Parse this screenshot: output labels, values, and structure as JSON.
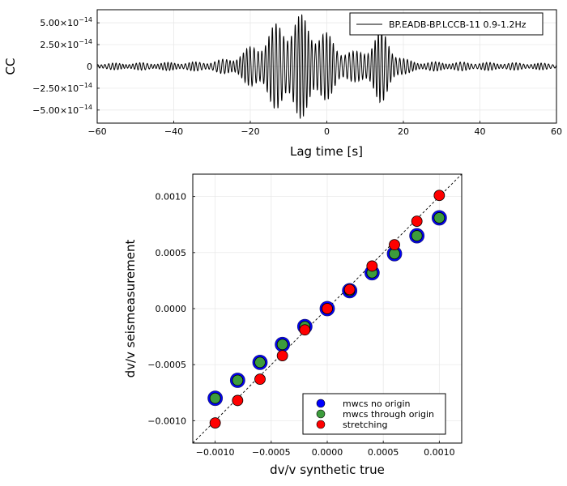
{
  "chart_data": [
    {
      "type": "line",
      "title": "",
      "xlabel": "Lag time [s]",
      "ylabel": "CC",
      "xlim": [
        -60,
        60
      ],
      "ylim": [
        -6.5e-14,
        6.5e-14
      ],
      "xticks": [
        -60,
        -40,
        -20,
        0,
        20,
        40,
        60
      ],
      "xtick_labels": [
        "−60",
        "−40",
        "−20",
        "0",
        "20",
        "40",
        "60"
      ],
      "yticks": [
        5e-14,
        2.5e-14,
        0,
        -2.5e-14,
        -5e-14
      ],
      "ytick_labels": [
        {
          "mant": "5.00×10",
          "exp": "−14"
        },
        {
          "mant": "2.50×10",
          "exp": "−14"
        },
        {
          "mant": "0",
          "exp": ""
        },
        {
          "mant": "−2.50×10",
          "exp": "−14"
        },
        {
          "mant": "−5.00×10",
          "exp": "−14"
        }
      ],
      "grid": true,
      "legend": "top-right",
      "series": [
        {
          "name": "BP.EADB-BP.LCCB-11 0.9-1.2Hz",
          "color": "#000000",
          "envelope": [
            {
              "center": -8,
              "width": 8,
              "amp": 5.5e-14
            },
            {
              "center": 14,
              "width": 3,
              "amp": 3.5e-14
            },
            {
              "center": 0,
              "width": 60,
              "amp": 6e-15
            }
          ]
        }
      ]
    },
    {
      "type": "scatter",
      "title": "",
      "xlabel": "dv/v synthetic true",
      "ylabel": "dv/v seismeasurement",
      "xlim": [
        -0.0012,
        0.0012
      ],
      "ylim": [
        -0.0012,
        0.0012
      ],
      "xticks": [
        -0.001,
        -0.0005,
        0,
        0.0005,
        0.001
      ],
      "xtick_labels": [
        "−0.0010",
        "−0.0005",
        "0.0000",
        "0.0005",
        "0.0010"
      ],
      "yticks": [
        0.001,
        0.0005,
        0,
        -0.0005,
        -0.001
      ],
      "ytick_labels": [
        "0.0010",
        "0.0005",
        "0.0000",
        "−0.0005",
        "−0.0010"
      ],
      "grid": true,
      "legend": "bottom-right",
      "reference_line": {
        "style": "dashed",
        "from": [
          -0.0012,
          -0.0012
        ],
        "to": [
          0.0012,
          0.0012
        ]
      },
      "x": [
        -0.001,
        -0.0008,
        -0.0006,
        -0.0004,
        -0.0002,
        0,
        0.0002,
        0.0004,
        0.0006,
        0.0008,
        0.001
      ],
      "series": [
        {
          "name": "mwcs no origin",
          "color": "#0000ff",
          "y": [
            -0.0008,
            -0.00064,
            -0.00048,
            -0.00032,
            -0.00016,
            0.0,
            0.00016,
            0.00032,
            0.00049,
            0.00065,
            0.00081
          ]
        },
        {
          "name": "mwcs through origin",
          "color": "#3c9c3c",
          "y": [
            -0.0008,
            -0.00064,
            -0.00048,
            -0.00032,
            -0.00016,
            0.0,
            0.00016,
            0.00032,
            0.00049,
            0.00065,
            0.00081
          ]
        },
        {
          "name": "stretching",
          "color": "#ff0000",
          "y": [
            -0.00102,
            -0.00082,
            -0.00063,
            -0.00042,
            -0.00019,
            0.0,
            0.00017,
            0.00038,
            0.00057,
            0.00078,
            0.00101
          ]
        }
      ]
    }
  ]
}
